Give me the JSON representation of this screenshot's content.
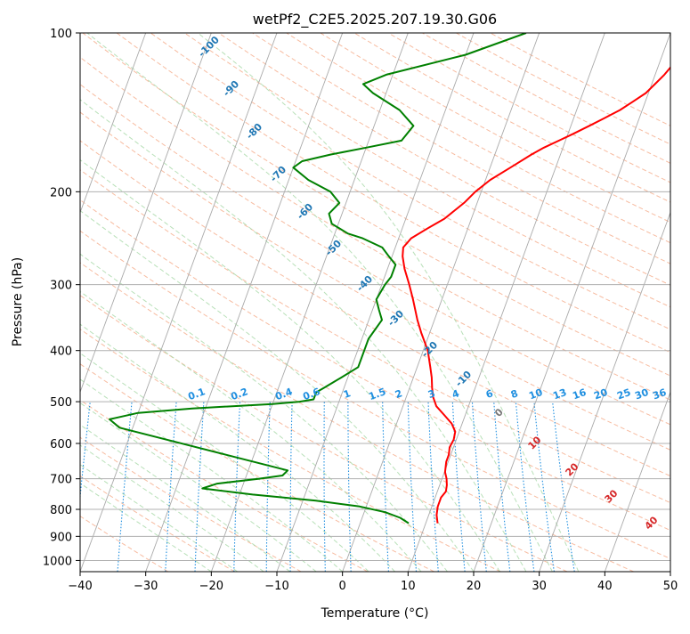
{
  "chart_data": {
    "type": "line",
    "title": "wetPf2_C2E5.2025.207.19.30.G06",
    "xlabel": "Temperature (°C)",
    "ylabel": "Pressure (hPa)",
    "xlim": [
      -40,
      50
    ],
    "ylim": [
      1050,
      100
    ],
    "yscale": "log",
    "xticks": [
      -40,
      -30,
      -20,
      -10,
      0,
      10,
      20,
      30,
      40,
      50
    ],
    "yticks": [
      100,
      200,
      300,
      400,
      500,
      600,
      700,
      800,
      900,
      1000
    ],
    "grid": true,
    "colors": {
      "temperature": "#ff0000",
      "dewpoint": "#008000",
      "isotherm": "#aaaaaa",
      "dry_adiabat": "#f4a582",
      "moist_adiabat": "#a6d8a6",
      "mixing_ratio": "#1f8fe0",
      "axis_label_dry": "#1f77b4",
      "axis_label_moist": "#d62728"
    },
    "series": [
      {
        "key": "temperature",
        "p": [
          850,
          820,
          790,
          760,
          740,
          720,
          700,
          680,
          650,
          630,
          610,
          590,
          570,
          550,
          530,
          510,
          490,
          470,
          450,
          430,
          400,
          370,
          350,
          320,
          300,
          280,
          265,
          255,
          245,
          235,
          225,
          210,
          200,
          190,
          180,
          170,
          165,
          160,
          155,
          150,
          145,
          140,
          135,
          130,
          125,
          120,
          115,
          110,
          105,
          100
        ],
        "t": [
          11.8,
          11.2,
          10.9,
          10.9,
          11.3,
          11.1,
          10.7,
          10.1,
          9.7,
          9.7,
          9.4,
          9.6,
          9.4,
          8.4,
          6.8,
          5.1,
          4.1,
          3.4,
          2.8,
          2.0,
          0.7,
          -1.3,
          -2.6,
          -4.4,
          -5.8,
          -7.4,
          -8.4,
          -8.8,
          -8.1,
          -6.2,
          -4.1,
          -2.0,
          -0.9,
          0.7,
          3.1,
          5.6,
          7.1,
          9.0,
          10.9,
          12.8,
          14.7,
          16.6,
          18.1,
          19.6,
          20.5,
          21.4,
          22.1,
          22.6,
          23.1,
          23.6
        ]
      },
      {
        "key": "dewpoint",
        "p": [
          850,
          830,
          810,
          790,
          770,
          750,
          730,
          715,
          700,
          690,
          675,
          560,
          540,
          525,
          515,
          505,
          500,
          495,
          490,
          480,
          470,
          460,
          450,
          430,
          400,
          380,
          350,
          335,
          320,
          300,
          290,
          275,
          265,
          255,
          245,
          240,
          230,
          220,
          210,
          200,
          190,
          180,
          175,
          170,
          165,
          160,
          150,
          140,
          130,
          125,
          120,
          110,
          100
        ],
        "t": [
          7.4,
          5.8,
          3.2,
          -1.0,
          -8.0,
          -18.0,
          -26.0,
          -24.0,
          -18.0,
          -14.5,
          -14.0,
          -42.0,
          -44.0,
          -40.0,
          -32.0,
          -20.0,
          -16.0,
          -14.0,
          -14.0,
          -14.0,
          -13.0,
          -12.0,
          -11.0,
          -9.0,
          -9.0,
          -9.0,
          -8.0,
          -9.0,
          -10.0,
          -9.5,
          -9.0,
          -9.0,
          -10.5,
          -12.0,
          -15.5,
          -18.0,
          -21.0,
          -22.0,
          -21.0,
          -23.0,
          -27.0,
          -30.0,
          -29.0,
          -25.0,
          -20.0,
          -15.0,
          -14.0,
          -17.0,
          -22.0,
          -24.0,
          -21.0,
          -10.0,
          -2.0
        ]
      }
    ],
    "dry_adiabat_labels": [
      -100,
      -90,
      -80,
      -70,
      -60,
      -50,
      -40,
      -30,
      -20,
      -10,
      0,
      10,
      20,
      30,
      40
    ],
    "mixing_ratio_labels": [
      "0.1",
      "0.2",
      "0.4",
      "0.6",
      "1",
      "1.5",
      "2",
      "3",
      "4",
      "6",
      "8",
      "10",
      "13",
      "16",
      "20",
      "25",
      "30",
      "36"
    ]
  }
}
